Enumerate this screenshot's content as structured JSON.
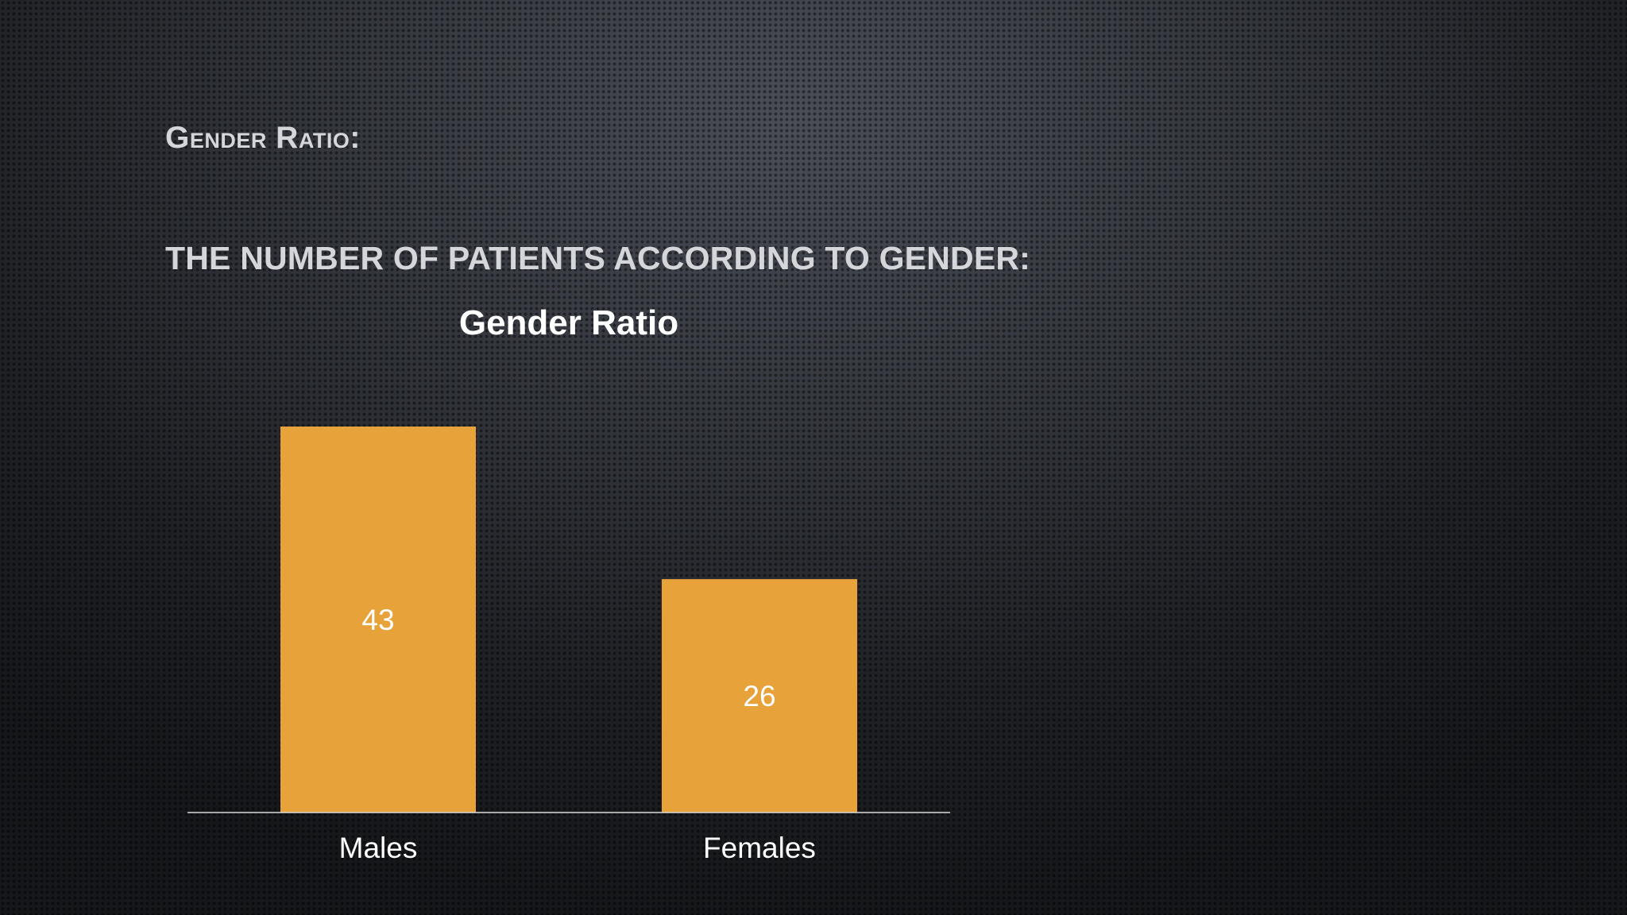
{
  "slide": {
    "title": "Gender Ratio:",
    "subtitle": "THE NUMBER OF PATIENTS ACCORDING TO GENDER:"
  },
  "chart_data": {
    "type": "bar",
    "title": "Gender Ratio",
    "categories": [
      "Males",
      "Females"
    ],
    "values": [
      43,
      26
    ],
    "data_labels": true,
    "data_label_position": "center",
    "xlabel": "",
    "ylabel": "",
    "ylim": [
      0,
      43
    ],
    "grid": false,
    "legend": "none",
    "bar_color": "#e8a23a"
  }
}
